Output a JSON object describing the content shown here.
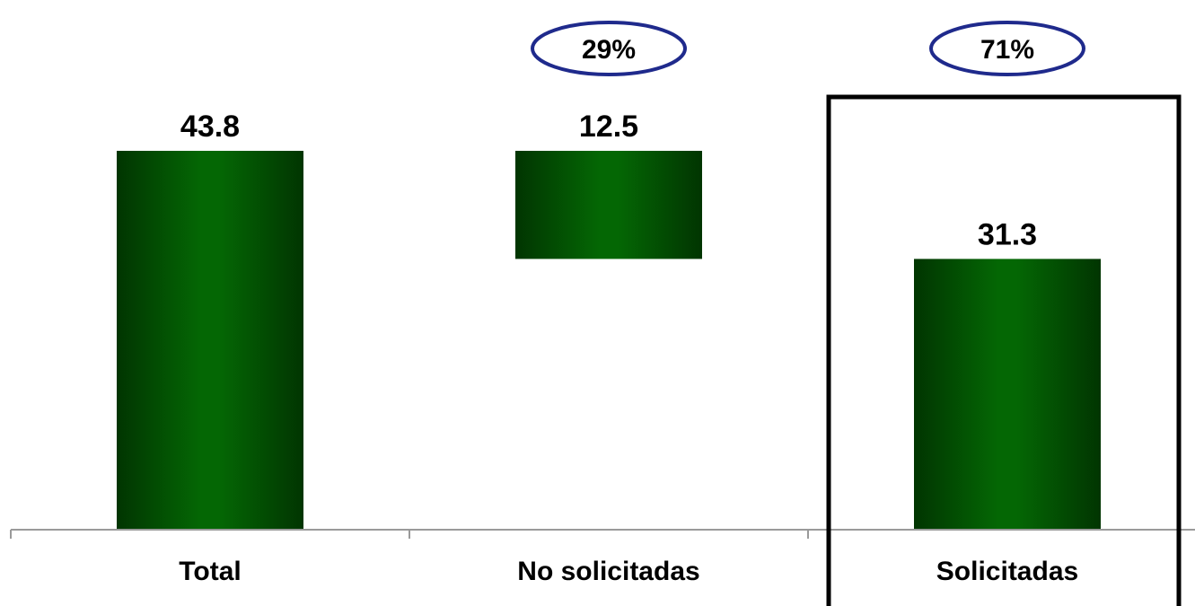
{
  "chart_data": {
    "type": "bar",
    "subtype": "waterfall",
    "categories": [
      "Total",
      "No solicitadas",
      "Solicitadas"
    ],
    "values": [
      43.8,
      12.5,
      31.3
    ],
    "data_labels": [
      "43.8",
      "12.5",
      "31.3"
    ],
    "percent_callouts": [
      {
        "category": "No solicitadas",
        "label": "29%"
      },
      {
        "category": "Solicitadas",
        "label": "71%"
      }
    ],
    "highlighted_category": "Solicitadas",
    "title": "",
    "xlabel": "",
    "ylabel": "",
    "ylim": [
      0,
      43.8
    ],
    "grid": false,
    "legend": "none",
    "colors": {
      "bar_dark": "#013501",
      "bar_mid": "#046704",
      "callout_border": "#1f2a8c",
      "highlight_border": "#000000",
      "axis": "#9a9a9a"
    }
  }
}
